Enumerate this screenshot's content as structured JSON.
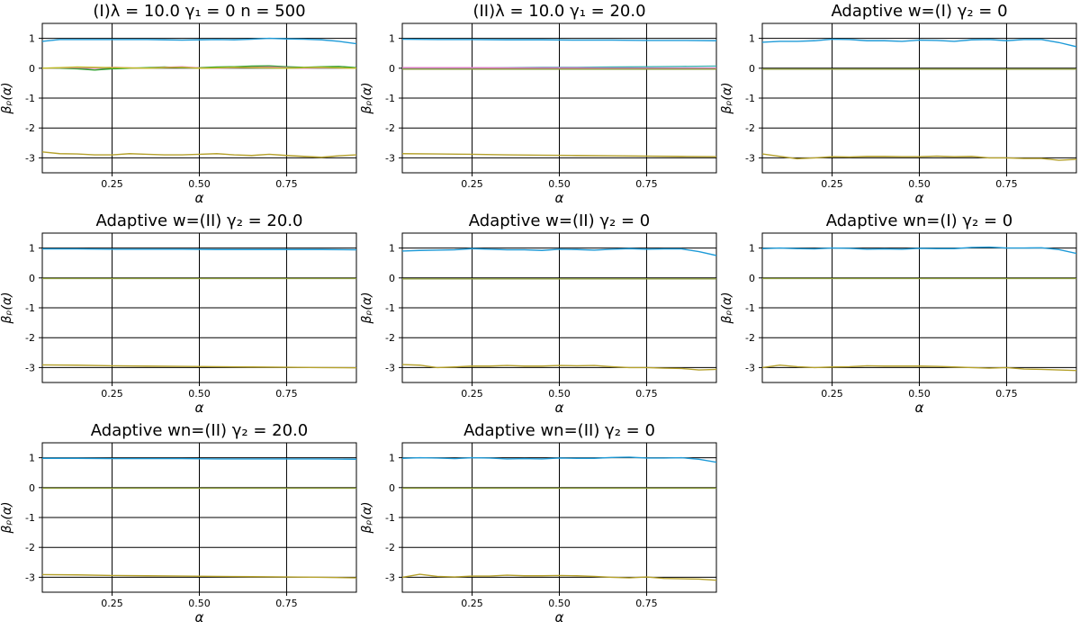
{
  "chart_data": [
    {
      "type": "line",
      "title": "(I)λ = 10.0    γ₁ = 0    n = 500",
      "xlabel": "α",
      "ylabel": "βₚ(α)",
      "xlim": [
        0.05,
        0.95
      ],
      "ylim": [
        -3.5,
        1.5
      ],
      "xticks": [
        "0.25",
        "0.50",
        "0.75"
      ],
      "yticks": [
        "1",
        "0",
        "-1",
        "-2",
        "-3"
      ],
      "grid": true,
      "reference_lines": [
        1,
        0,
        -3
      ],
      "x": [
        0.05,
        0.1,
        0.15,
        0.2,
        0.25,
        0.3,
        0.35,
        0.4,
        0.45,
        0.5,
        0.55,
        0.6,
        0.65,
        0.7,
        0.75,
        0.8,
        0.85,
        0.9,
        0.95
      ],
      "series": [
        {
          "color": "#1f9bd8",
          "values": [
            0.9,
            0.96,
            0.96,
            0.96,
            0.96,
            0.96,
            0.96,
            0.95,
            0.94,
            0.95,
            0.96,
            0.95,
            0.97,
            1.0,
            0.98,
            0.97,
            0.95,
            0.9,
            0.82
          ]
        },
        {
          "color": "#2ca02c",
          "values": [
            0.0,
            0.0,
            -0.02,
            -0.06,
            -0.02,
            0.0,
            0.02,
            0.04,
            0.02,
            0.02,
            0.04,
            0.05,
            0.07,
            0.08,
            0.05,
            0.03,
            0.05,
            0.06,
            0.02
          ]
        },
        {
          "color": "#e377c2",
          "values": [
            0.0,
            0.01,
            0.02,
            0.0,
            0.03,
            0.01,
            0.0,
            0.03,
            0.05,
            0.01,
            0.0,
            0.02,
            0.03,
            0.04,
            0.02,
            0.0,
            0.02,
            0.01,
            0.0
          ]
        },
        {
          "color": "#bcbd22",
          "values": [
            0.0,
            0.02,
            0.04,
            0.03,
            0.02,
            0.01,
            0.0,
            0.02,
            0.03,
            0.0,
            0.01,
            0.03,
            0.02,
            0.01,
            0.0,
            0.02,
            0.03,
            0.01,
            0.0
          ]
        },
        {
          "color": "#b5a12b",
          "values": [
            -2.8,
            -2.86,
            -2.87,
            -2.9,
            -2.9,
            -2.86,
            -2.88,
            -2.9,
            -2.9,
            -2.88,
            -2.86,
            -2.9,
            -2.92,
            -2.88,
            -2.92,
            -2.95,
            -2.98,
            -2.93,
            -2.9
          ]
        }
      ]
    },
    {
      "type": "line",
      "title": "(II)λ = 10.0    γ₁ = 20.0",
      "xlabel": "α",
      "ylabel": "βₚ(α)",
      "xlim": [
        0.05,
        0.95
      ],
      "ylim": [
        -3.5,
        1.5
      ],
      "xticks": [
        "0.25",
        "0.50",
        "0.75"
      ],
      "yticks": [
        "1",
        "0",
        "-1",
        "-2",
        "-3"
      ],
      "grid": true,
      "reference_lines": [
        1,
        0,
        -3
      ],
      "x": [
        0.05,
        0.15,
        0.25,
        0.35,
        0.45,
        0.55,
        0.65,
        0.75,
        0.85,
        0.95
      ],
      "series": [
        {
          "color": "#1f9bd8",
          "values": [
            0.97,
            0.96,
            0.96,
            0.95,
            0.95,
            0.94,
            0.94,
            0.93,
            0.93,
            0.92
          ]
        },
        {
          "color": "#3db0b0",
          "values": [
            0.0,
            0.0,
            0.01,
            0.02,
            0.03,
            0.03,
            0.04,
            0.05,
            0.06,
            0.07
          ]
        },
        {
          "color": "#e377c2",
          "values": [
            0.02,
            0.02,
            0.02,
            0.01,
            0.01,
            0.01,
            0.0,
            0.0,
            0.0,
            0.0
          ]
        },
        {
          "color": "#8a9a3a",
          "values": [
            -0.03,
            -0.03,
            -0.03,
            -0.03,
            -0.03,
            -0.03,
            -0.03,
            -0.03,
            -0.03,
            -0.03
          ]
        },
        {
          "color": "#b5a12b",
          "values": [
            -2.86,
            -2.87,
            -2.88,
            -2.9,
            -2.91,
            -2.92,
            -2.93,
            -2.94,
            -2.95,
            -2.96
          ]
        }
      ]
    },
    {
      "type": "line",
      "title": "Adaptive w=(I) γ₂ = 0",
      "xlabel": "α",
      "ylabel": "βₚ(α)",
      "xlim": [
        0.05,
        0.95
      ],
      "ylim": [
        -3.5,
        1.5
      ],
      "xticks": [
        "0.25",
        "0.50",
        "0.75"
      ],
      "yticks": [
        "1",
        "0",
        "-1",
        "-2",
        "-3"
      ],
      "grid": true,
      "reference_lines": [
        1,
        0,
        -3
      ],
      "x": [
        0.05,
        0.1,
        0.15,
        0.2,
        0.25,
        0.3,
        0.35,
        0.4,
        0.45,
        0.5,
        0.55,
        0.6,
        0.65,
        0.7,
        0.75,
        0.8,
        0.85,
        0.9,
        0.95
      ],
      "series": [
        {
          "color": "#1f9bd8",
          "values": [
            0.87,
            0.9,
            0.9,
            0.92,
            0.97,
            0.96,
            0.92,
            0.92,
            0.9,
            0.94,
            0.93,
            0.9,
            0.95,
            0.96,
            0.92,
            0.96,
            0.96,
            0.86,
            0.72
          ]
        },
        {
          "color": "#8a9a3a",
          "values": [
            -0.03,
            -0.03,
            -0.03,
            -0.03,
            -0.03,
            -0.03,
            -0.03,
            -0.03,
            -0.03,
            -0.03,
            -0.03,
            -0.03,
            -0.03,
            -0.03,
            -0.03,
            -0.03,
            -0.03,
            -0.03,
            -0.03
          ]
        },
        {
          "color": "#b5a12b",
          "values": [
            -2.87,
            -2.95,
            -3.03,
            -3.0,
            -2.96,
            -2.97,
            -2.95,
            -2.95,
            -2.96,
            -2.96,
            -2.94,
            -2.96,
            -2.95,
            -3.0,
            -3.0,
            -3.02,
            -3.02,
            -3.08,
            -3.05
          ]
        }
      ]
    },
    {
      "type": "line",
      "title": "Adaptive w=(II) γ₂ = 20.0",
      "xlabel": "α",
      "ylabel": "βₚ(α)",
      "xlim": [
        0.05,
        0.95
      ],
      "ylim": [
        -3.5,
        1.5
      ],
      "xticks": [
        "0.25",
        "0.50",
        "0.75"
      ],
      "yticks": [
        "1",
        "0",
        "-1",
        "-2",
        "-3"
      ],
      "grid": true,
      "reference_lines": [
        1,
        0,
        -3
      ],
      "x": [
        0.05,
        0.15,
        0.25,
        0.35,
        0.45,
        0.55,
        0.65,
        0.75,
        0.85,
        0.95
      ],
      "series": [
        {
          "color": "#1f9bd8",
          "values": [
            0.97,
            0.97,
            0.96,
            0.96,
            0.96,
            0.95,
            0.95,
            0.95,
            0.95,
            0.94
          ]
        },
        {
          "color": "#8a9a3a",
          "values": [
            -0.02,
            -0.02,
            -0.02,
            -0.02,
            -0.02,
            -0.02,
            -0.02,
            -0.02,
            -0.02,
            -0.02
          ]
        },
        {
          "color": "#b5a12b",
          "values": [
            -2.91,
            -2.92,
            -2.94,
            -2.95,
            -2.96,
            -2.97,
            -2.98,
            -2.99,
            -3.0,
            -3.01
          ]
        }
      ]
    },
    {
      "type": "line",
      "title": "Adaptive w=(II) γ₂ = 0",
      "xlabel": "α",
      "ylabel": "βₚ(α)",
      "xlim": [
        0.05,
        0.95
      ],
      "ylim": [
        -3.5,
        1.5
      ],
      "xticks": [
        "0.25",
        "0.50",
        "0.75"
      ],
      "yticks": [
        "1",
        "0",
        "-1",
        "-2",
        "-3"
      ],
      "grid": true,
      "reference_lines": [
        1,
        0,
        -3
      ],
      "x": [
        0.05,
        0.1,
        0.15,
        0.2,
        0.25,
        0.3,
        0.35,
        0.4,
        0.45,
        0.5,
        0.55,
        0.6,
        0.65,
        0.7,
        0.75,
        0.8,
        0.85,
        0.9,
        0.95
      ],
      "series": [
        {
          "color": "#1f9bd8",
          "values": [
            0.9,
            0.92,
            0.93,
            0.94,
            0.98,
            0.96,
            0.94,
            0.94,
            0.92,
            0.96,
            0.95,
            0.93,
            0.96,
            0.98,
            0.96,
            0.97,
            0.97,
            0.88,
            0.75
          ]
        },
        {
          "color": "#8a9a3a",
          "values": [
            -0.03,
            -0.03,
            -0.03,
            -0.03,
            -0.03,
            -0.03,
            -0.03,
            -0.03,
            -0.03,
            -0.03,
            -0.03,
            -0.03,
            -0.03,
            -0.03,
            -0.03,
            -0.03,
            -0.03,
            -0.03,
            -0.03
          ]
        },
        {
          "color": "#b5a12b",
          "values": [
            -2.9,
            -2.92,
            -3.0,
            -2.98,
            -2.95,
            -2.95,
            -2.93,
            -2.95,
            -2.95,
            -2.93,
            -2.94,
            -2.93,
            -2.97,
            -3.0,
            -3.0,
            -3.02,
            -3.03,
            -3.08,
            -3.06
          ]
        }
      ]
    },
    {
      "type": "line",
      "title": "Adaptive wn=(I) γ₂ = 0",
      "xlabel": "α",
      "ylabel": "βₚ(α)",
      "xlim": [
        0.05,
        0.95
      ],
      "ylim": [
        -3.5,
        1.5
      ],
      "xticks": [
        "0.25",
        "0.50",
        "0.75"
      ],
      "yticks": [
        "1",
        "0",
        "-1",
        "-2",
        "-3"
      ],
      "grid": true,
      "reference_lines": [
        1,
        0,
        -3
      ],
      "x": [
        0.05,
        0.1,
        0.15,
        0.2,
        0.25,
        0.3,
        0.35,
        0.4,
        0.45,
        0.5,
        0.55,
        0.6,
        0.65,
        0.7,
        0.75,
        0.8,
        0.85,
        0.9,
        0.95
      ],
      "series": [
        {
          "color": "#1f9bd8",
          "values": [
            0.98,
            1.0,
            0.98,
            0.97,
            1.0,
            0.99,
            0.96,
            0.97,
            0.96,
            0.99,
            0.98,
            0.98,
            1.02,
            1.03,
            1.0,
            1.0,
            1.01,
            0.95,
            0.82
          ]
        },
        {
          "color": "#8a9a3a",
          "values": [
            -0.02,
            -0.02,
            -0.02,
            -0.02,
            -0.02,
            -0.02,
            -0.02,
            -0.02,
            -0.02,
            -0.02,
            -0.02,
            -0.02,
            -0.02,
            -0.02,
            -0.02,
            -0.02,
            -0.02,
            -0.02,
            -0.02
          ]
        },
        {
          "color": "#b5a12b",
          "values": [
            -3.0,
            -2.92,
            -2.97,
            -3.0,
            -2.98,
            -2.97,
            -2.94,
            -2.95,
            -2.95,
            -2.95,
            -2.96,
            -2.98,
            -3.0,
            -3.02,
            -3.0,
            -3.05,
            -3.06,
            -3.08,
            -3.1
          ]
        }
      ]
    },
    {
      "type": "line",
      "title": "Adaptive wn=(II) γ₂ = 20.0",
      "xlabel": "α",
      "ylabel": "βₚ(α)",
      "xlim": [
        0.05,
        0.95
      ],
      "ylim": [
        -3.5,
        1.5
      ],
      "xticks": [
        "0.25",
        "0.50",
        "0.75"
      ],
      "yticks": [
        "1",
        "0",
        "-1",
        "-2",
        "-3"
      ],
      "grid": true,
      "reference_lines": [
        1,
        0,
        -3
      ],
      "x": [
        0.05,
        0.15,
        0.25,
        0.35,
        0.45,
        0.55,
        0.65,
        0.75,
        0.85,
        0.95
      ],
      "series": [
        {
          "color": "#1f9bd8",
          "values": [
            0.98,
            0.98,
            0.97,
            0.97,
            0.97,
            0.96,
            0.96,
            0.96,
            0.96,
            0.95
          ]
        },
        {
          "color": "#8a9a3a",
          "values": [
            -0.02,
            -0.02,
            -0.02,
            -0.02,
            -0.02,
            -0.02,
            -0.02,
            -0.02,
            -0.02,
            -0.02
          ]
        },
        {
          "color": "#b5a12b",
          "values": [
            -2.91,
            -2.92,
            -2.94,
            -2.95,
            -2.96,
            -2.97,
            -2.98,
            -2.99,
            -3.0,
            -3.02
          ]
        }
      ]
    },
    {
      "type": "line",
      "title": "Adaptive wn=(II) γ₂ = 0",
      "xlabel": "α",
      "ylabel": "βₚ(α)",
      "xlim": [
        0.05,
        0.95
      ],
      "ylim": [
        -3.5,
        1.5
      ],
      "xticks": [
        "0.25",
        "0.50",
        "0.75"
      ],
      "yticks": [
        "1",
        "0",
        "-1",
        "-2",
        "-3"
      ],
      "grid": true,
      "reference_lines": [
        1,
        0,
        -3
      ],
      "x": [
        0.05,
        0.1,
        0.15,
        0.2,
        0.25,
        0.3,
        0.35,
        0.4,
        0.45,
        0.5,
        0.55,
        0.6,
        0.65,
        0.7,
        0.75,
        0.8,
        0.85,
        0.9,
        0.95
      ],
      "series": [
        {
          "color": "#1f9bd8",
          "values": [
            0.98,
            1.0,
            0.99,
            0.97,
            1.0,
            0.99,
            0.96,
            0.97,
            0.96,
            0.99,
            0.98,
            0.98,
            1.01,
            1.02,
            0.99,
            0.99,
            1.0,
            0.95,
            0.85
          ]
        },
        {
          "color": "#8a9a3a",
          "values": [
            -0.02,
            -0.02,
            -0.02,
            -0.02,
            -0.02,
            -0.02,
            -0.02,
            -0.02,
            -0.02,
            -0.02,
            -0.02,
            -0.02,
            -0.02,
            -0.02,
            -0.02,
            -0.02,
            -0.02,
            -0.02,
            -0.02
          ]
        },
        {
          "color": "#b5a12b",
          "values": [
            -3.0,
            -2.9,
            -2.97,
            -2.99,
            -2.96,
            -2.96,
            -2.93,
            -2.95,
            -2.95,
            -2.94,
            -2.95,
            -2.97,
            -3.0,
            -3.02,
            -2.99,
            -3.04,
            -3.05,
            -3.06,
            -3.1
          ]
        }
      ]
    }
  ]
}
